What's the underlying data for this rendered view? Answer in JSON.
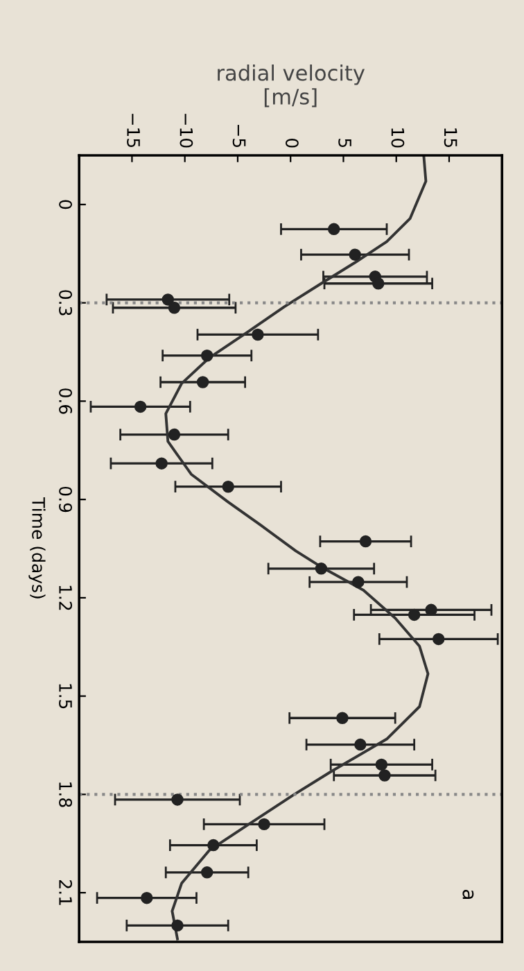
{
  "chart_data": {
    "type": "scatter",
    "orientation": "horizontal",
    "xlabel": "radial velocity\n[m/s]",
    "ylabel": "Time (days)",
    "xlim": [
      -20,
      20
    ],
    "xticks": [
      {
        "value": -15,
        "label": "−15"
      },
      {
        "value": -10,
        "label": "−10"
      },
      {
        "value": -5,
        "label": "−5"
      },
      0,
      5,
      10,
      15
    ],
    "ylim": [
      2.25,
      -0.15
    ],
    "yticks": [
      0,
      0.3,
      0.6,
      0.9,
      1.2,
      1.5,
      1.8,
      2.1
    ],
    "grid": false,
    "marker": "circle",
    "ref_lines": [
      {
        "axis": "y",
        "value": 0.3,
        "color": "#888888",
        "line_style": "dotted"
      },
      {
        "axis": "y",
        "value": 1.8,
        "color": "#888888",
        "line_style": "dotted"
      }
    ],
    "annotations": [
      "a"
    ],
    "series": [
      {
        "color": "#222222",
        "x": [
          0.075,
          0.153,
          0.22,
          0.241,
          0.29,
          0.315,
          0.397,
          0.461,
          0.542,
          0.617,
          0.702,
          0.79,
          0.861,
          1.028,
          1.111,
          1.152,
          1.237,
          1.252,
          1.326,
          1.567,
          1.648,
          1.709,
          1.742,
          1.816,
          1.891,
          1.955,
          2.038,
          2.116,
          2.2
        ],
        "values": [
          4.1,
          6.1,
          8.0,
          8.3,
          -11.6,
          -11.0,
          -3.1,
          -7.9,
          -8.3,
          -14.2,
          -11.0,
          -12.2,
          -5.9,
          7.1,
          2.9,
          6.4,
          13.3,
          11.7,
          14.0,
          4.9,
          6.6,
          8.6,
          8.9,
          -10.7,
          -2.5,
          -7.3,
          -7.9,
          -13.6,
          -10.7
        ],
        "errors": [
          5.0,
          5.1,
          4.9,
          5.1,
          5.8,
          5.8,
          5.7,
          4.2,
          4.0,
          4.7,
          5.1,
          4.8,
          5.0,
          4.3,
          5.0,
          4.6,
          5.7,
          5.7,
          5.6,
          5.0,
          5.1,
          4.8,
          4.8,
          5.9,
          5.7,
          4.1,
          3.9,
          4.7,
          4.8
        ]
      },
      {
        "type": "line",
        "color": "#333333",
        "line_style": "solid",
        "marker": "none",
        "x": [
          -0.149,
          -0.071,
          0.043,
          0.113,
          0.177,
          0.241,
          0.312,
          0.39,
          0.468,
          0.546,
          0.638,
          0.723,
          0.823,
          0.908,
          0.979,
          1.057,
          1.106,
          1.177,
          1.262,
          1.348,
          1.432,
          1.532,
          1.631,
          1.731,
          1.801,
          1.894,
          1.971,
          2.071,
          2.156,
          2.241
        ],
        "values": [
          12.6,
          12.8,
          11.3,
          9.1,
          6.1,
          2.9,
          -0.6,
          -4.1,
          -7.7,
          -10.3,
          -11.8,
          -11.6,
          -9.4,
          -5.9,
          -2.8,
          0.5,
          2.9,
          6.9,
          9.9,
          12.2,
          13.0,
          12.2,
          9.1,
          3.8,
          0.3,
          -4.1,
          -7.7,
          -10.3,
          -11.2,
          -10.7
        ]
      }
    ]
  }
}
